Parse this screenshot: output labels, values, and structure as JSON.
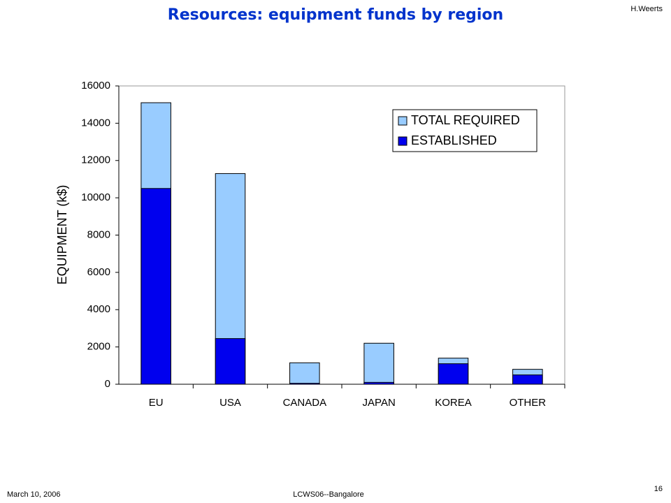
{
  "chart_data": {
    "type": "bar",
    "title": "Resources: equipment funds by region",
    "y_label": "EQUIPMENT (k$)",
    "categories": [
      "EU",
      "USA",
      "CANADA",
      "JAPAN",
      "KOREA",
      "OTHER"
    ],
    "series": [
      {
        "name": "TOTAL REQUIRED",
        "color": "#99ccff",
        "values": [
          15100,
          11300,
          1150,
          2200,
          1400,
          800
        ]
      },
      {
        "name": "ESTABLISHED",
        "color": "#0000ee",
        "values": [
          10500,
          2450,
          50,
          100,
          1100,
          500
        ]
      }
    ],
    "ylim": [
      0,
      16000
    ],
    "yticks": [
      0,
      2000,
      4000,
      6000,
      8000,
      10000,
      12000,
      14000,
      16000
    ],
    "grid": false,
    "legend": "upper right"
  },
  "header": {
    "author": "H.Weerts"
  },
  "footer": {
    "date": "March 10, 2006",
    "event": "LCWS06--Bangalore",
    "page": "16"
  }
}
